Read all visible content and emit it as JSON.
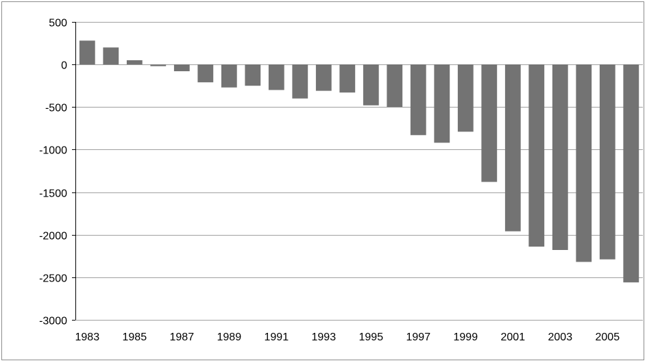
{
  "chart_data": {
    "type": "bar",
    "title": "",
    "xlabel": "",
    "ylabel": "",
    "ylim": [
      -3000,
      500
    ],
    "yticks": [
      500,
      0,
      -500,
      -1000,
      -1500,
      -2000,
      -2500,
      -3000
    ],
    "ytick_labels": [
      "500",
      "0",
      "-500",
      "-1000",
      "-1500",
      "-2000",
      "-2500",
      "-3000"
    ],
    "x_tick_labels": [
      "1983",
      "1985",
      "1987",
      "1989",
      "1991",
      "1993",
      "1995",
      "1997",
      "1999",
      "2001",
      "2003",
      "2005"
    ],
    "grid": true,
    "legend": "none",
    "bar_color": "#737373",
    "categories": [
      "1983",
      "1984",
      "1985",
      "1986",
      "1987",
      "1988",
      "1989",
      "1990",
      "1991",
      "1992",
      "1993",
      "1994",
      "1995",
      "1996",
      "1997",
      "1998",
      "1999",
      "2000",
      "2001",
      "2002",
      "2003",
      "2004",
      "2005",
      "2006"
    ],
    "values": [
      280,
      200,
      50,
      -20,
      -80,
      -210,
      -270,
      -250,
      -300,
      -400,
      -310,
      -330,
      -480,
      -500,
      -830,
      -920,
      -790,
      -1380,
      -1960,
      -2140,
      -2180,
      -2320,
      -2290,
      -2560
    ]
  }
}
